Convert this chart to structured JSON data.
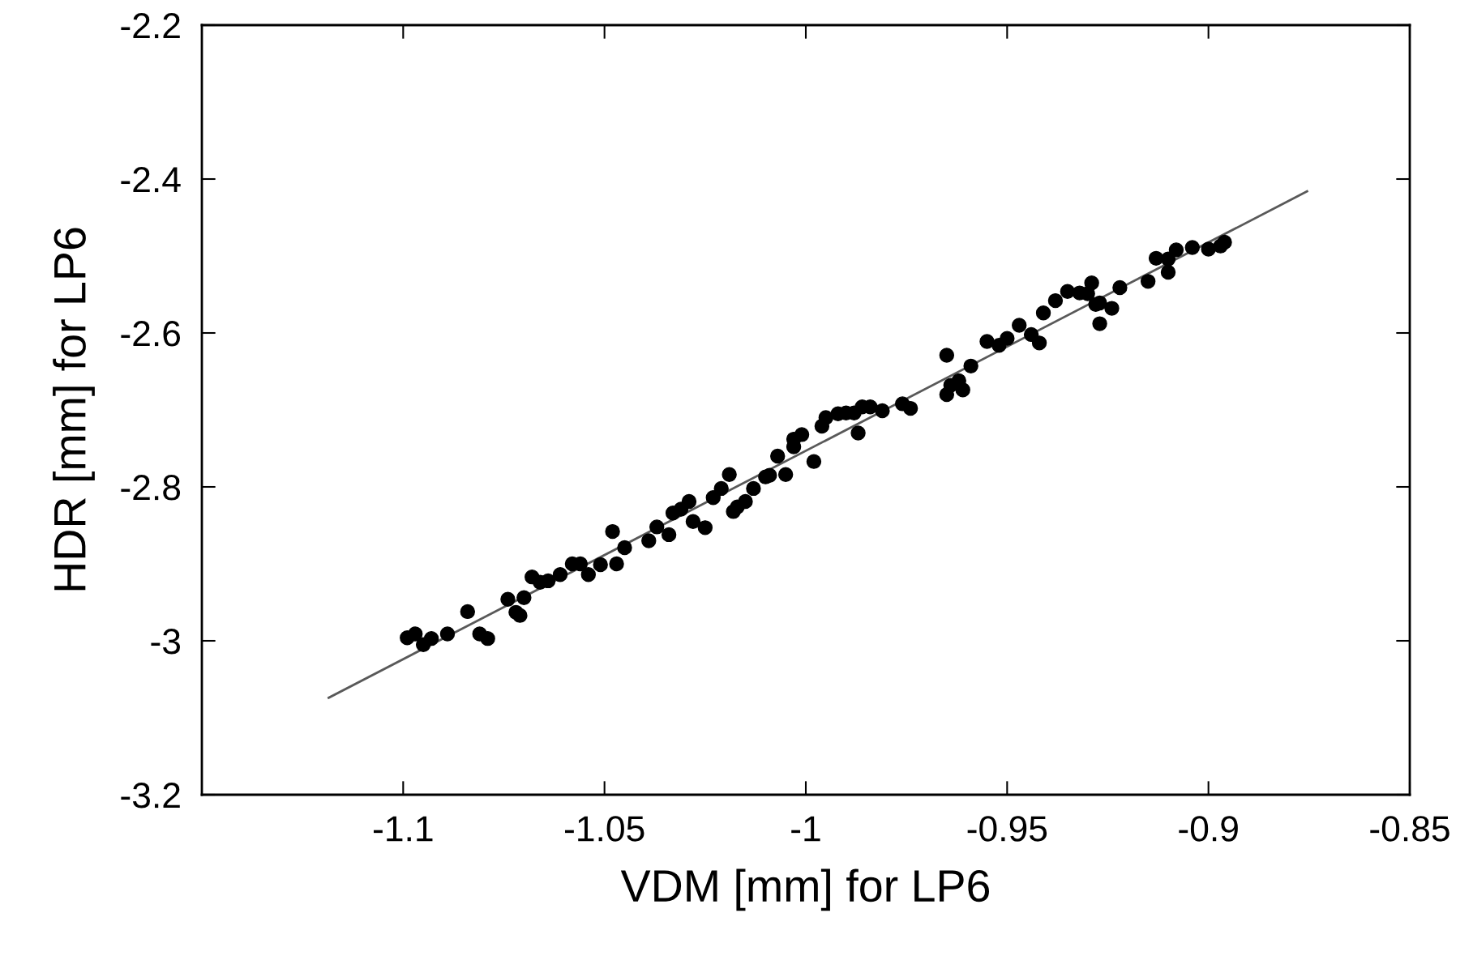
{
  "chart_data": {
    "type": "scatter",
    "xlabel": "VDM [mm] for LP6",
    "ylabel": "HDR [mm] for LP6",
    "xlim": [
      -1.15,
      -0.85
    ],
    "xticks": [
      -1.1,
      -1.05,
      -1,
      -0.95,
      -0.9,
      -0.85
    ],
    "ylim": [
      -3.2,
      -2.2
    ],
    "yticks": [
      -3.2,
      -3,
      -2.8,
      -2.6,
      -2.4,
      -2.2
    ],
    "grid": false,
    "series": [
      {
        "color": "#000000",
        "marker": "circle",
        "x": [
          -1.099,
          -1.097,
          -1.095,
          -1.093,
          -1.089,
          -1.084,
          -1.081,
          -1.079,
          -1.074,
          -1.072,
          -1.071,
          -1.07,
          -1.068,
          -1.066,
          -1.064,
          -1.061,
          -1.058,
          -1.056,
          -1.054,
          -1.051,
          -1.048,
          -1.047,
          -1.045,
          -1.039,
          -1.037,
          -1.034,
          -1.033,
          -1.031,
          -1.029,
          -1.028,
          -1.025,
          -1.023,
          -1.021,
          -1.019,
          -1.018,
          -1.017,
          -1.015,
          -1.013,
          -1.01,
          -1.009,
          -1.007,
          -1.005,
          -1.003,
          -1.003,
          -1.001,
          -0.998,
          -0.996,
          -0.995,
          -0.992,
          -0.99,
          -0.988,
          -0.987,
          -0.986,
          -0.984,
          -0.981,
          -0.976,
          -0.974,
          -0.965,
          -0.965,
          -0.964,
          -0.962,
          -0.961,
          -0.959,
          -0.955,
          -0.952,
          -0.95,
          -0.947,
          -0.944,
          -0.942,
          -0.941,
          -0.938,
          -0.935,
          -0.932,
          -0.93,
          -0.929,
          -0.928,
          -0.927,
          -0.927,
          -0.924,
          -0.922,
          -0.915,
          -0.913,
          -0.91,
          -0.91,
          -0.908,
          -0.904,
          -0.9,
          -0.897,
          -0.896
        ],
        "values": [
          -2.996,
          -2.991,
          -3.005,
          -2.997,
          -2.991,
          -2.962,
          -2.991,
          -2.997,
          -2.946,
          -2.963,
          -2.967,
          -2.944,
          -2.917,
          -2.924,
          -2.922,
          -2.914,
          -2.9,
          -2.9,
          -2.914,
          -2.901,
          -2.858,
          -2.9,
          -2.879,
          -2.87,
          -2.852,
          -2.862,
          -2.834,
          -2.829,
          -2.819,
          -2.845,
          -2.853,
          -2.814,
          -2.802,
          -2.784,
          -2.832,
          -2.826,
          -2.819,
          -2.802,
          -2.787,
          -2.785,
          -2.76,
          -2.784,
          -2.748,
          -2.738,
          -2.732,
          -2.767,
          -2.721,
          -2.71,
          -2.705,
          -2.704,
          -2.704,
          -2.73,
          -2.696,
          -2.696,
          -2.701,
          -2.692,
          -2.698,
          -2.629,
          -2.68,
          -2.668,
          -2.662,
          -2.674,
          -2.643,
          -2.611,
          -2.616,
          -2.607,
          -2.59,
          -2.602,
          -2.613,
          -2.574,
          -2.558,
          -2.546,
          -2.548,
          -2.549,
          -2.535,
          -2.563,
          -2.588,
          -2.561,
          -2.568,
          -2.541,
          -2.533,
          -2.503,
          -2.504,
          -2.521,
          -2.492,
          -2.489,
          -2.491,
          -2.487,
          -2.482
        ]
      },
      {
        "type": "line",
        "color": "#595959",
        "marker": "none",
        "line_style": "solid",
        "x": [
          -1.1185,
          -0.8755
        ],
        "values": [
          -3.074,
          -2.416
        ]
      }
    ]
  }
}
